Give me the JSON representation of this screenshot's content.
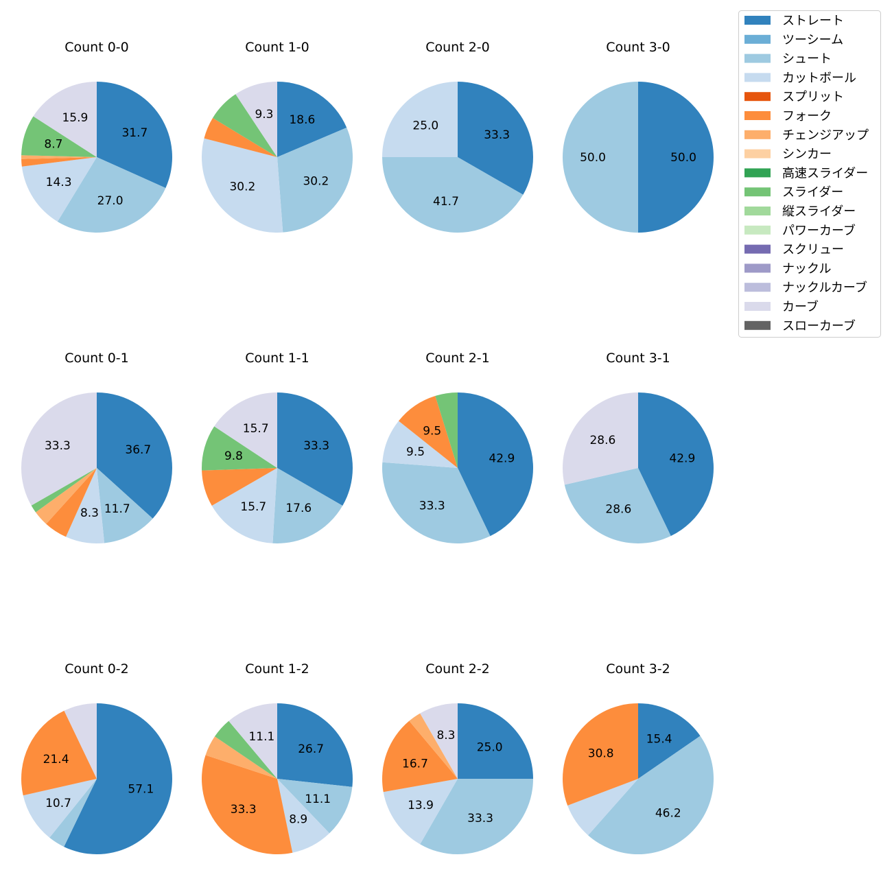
{
  "chart_data": {
    "type": "pie",
    "start_angle": 90,
    "direction": "clockwise",
    "label_format": "percent, 1 decimal, shown when >= 8%",
    "legend": {
      "placement": "top-right",
      "entries": [
        {
          "name": "ストレート",
          "color": "#3182bd"
        },
        {
          "name": "ツーシーム",
          "color": "#6baed6"
        },
        {
          "name": "シュート",
          "color": "#9ecae1"
        },
        {
          "name": "カットボール",
          "color": "#c6dbef"
        },
        {
          "name": "スプリット",
          "color": "#e6550d"
        },
        {
          "name": "フォーク",
          "color": "#fd8d3c"
        },
        {
          "name": "チェンジアップ",
          "color": "#fdae6b"
        },
        {
          "name": "シンカー",
          "color": "#fdd0a2"
        },
        {
          "name": "高速スライダー",
          "color": "#31a354"
        },
        {
          "name": "スライダー",
          "color": "#74c476"
        },
        {
          "name": "縦スライダー",
          "color": "#a1d99b"
        },
        {
          "name": "パワーカーブ",
          "color": "#c7e9c0"
        },
        {
          "name": "スクリュー",
          "color": "#756bb1"
        },
        {
          "name": "ナックル",
          "color": "#9e9ac8"
        },
        {
          "name": "ナックルカーブ",
          "color": "#bcbddc"
        },
        {
          "name": "カーブ",
          "color": "#dadaeb"
        },
        {
          "name": "スローカーブ",
          "color": "#636363"
        }
      ]
    },
    "charts": [
      {
        "title": "Count 0-0",
        "slices": [
          [
            "ストレート",
            31.7
          ],
          [
            "シュート",
            27.0
          ],
          [
            "カットボール",
            14.3
          ],
          [
            "フォーク",
            1.6
          ],
          [
            "チェンジアップ",
            0.8
          ],
          [
            "スライダー",
            8.7
          ],
          [
            "カーブ",
            15.9
          ]
        ]
      },
      {
        "title": "Count 1-0",
        "slices": [
          [
            "ストレート",
            18.6
          ],
          [
            "シュート",
            30.2
          ],
          [
            "カットボール",
            30.2
          ],
          [
            "フォーク",
            4.7
          ],
          [
            "スライダー",
            7.0
          ],
          [
            "カーブ",
            9.3
          ]
        ]
      },
      {
        "title": "Count 2-0",
        "slices": [
          [
            "ストレート",
            33.3
          ],
          [
            "シュート",
            41.7
          ],
          [
            "カットボール",
            25.0
          ]
        ]
      },
      {
        "title": "Count 3-0",
        "slices": [
          [
            "ストレート",
            50.0
          ],
          [
            "シュート",
            50.0
          ]
        ]
      },
      {
        "title": "Count 0-1",
        "slices": [
          [
            "ストレート",
            36.7
          ],
          [
            "シュート",
            11.7
          ],
          [
            "カットボール",
            8.3
          ],
          [
            "フォーク",
            5.0
          ],
          [
            "チェンジアップ",
            3.3
          ],
          [
            "スライダー",
            1.7
          ],
          [
            "カーブ",
            33.3
          ]
        ]
      },
      {
        "title": "Count 1-1",
        "slices": [
          [
            "ストレート",
            33.3
          ],
          [
            "シュート",
            17.6
          ],
          [
            "カットボール",
            15.7
          ],
          [
            "フォーク",
            7.8
          ],
          [
            "スライダー",
            9.8
          ],
          [
            "カーブ",
            15.7
          ]
        ]
      },
      {
        "title": "Count 2-1",
        "slices": [
          [
            "ストレート",
            42.9
          ],
          [
            "シュート",
            33.3
          ],
          [
            "カットボール",
            9.5
          ],
          [
            "フォーク",
            9.5
          ],
          [
            "スライダー",
            4.8
          ]
        ]
      },
      {
        "title": "Count 3-1",
        "slices": [
          [
            "ストレート",
            42.9
          ],
          [
            "シュート",
            28.6
          ],
          [
            "カーブ",
            28.6
          ]
        ]
      },
      {
        "title": "Count 0-2",
        "slices": [
          [
            "ストレート",
            57.1
          ],
          [
            "シュート",
            3.6
          ],
          [
            "カットボール",
            10.7
          ],
          [
            "フォーク",
            21.4
          ],
          [
            "カーブ",
            7.1
          ]
        ]
      },
      {
        "title": "Count 1-2",
        "slices": [
          [
            "ストレート",
            26.7
          ],
          [
            "シュート",
            11.1
          ],
          [
            "カットボール",
            8.9
          ],
          [
            "フォーク",
            33.3
          ],
          [
            "チェンジアップ",
            4.4
          ],
          [
            "スライダー",
            4.4
          ],
          [
            "カーブ",
            11.1
          ]
        ]
      },
      {
        "title": "Count 2-2",
        "slices": [
          [
            "ストレート",
            25.0
          ],
          [
            "シュート",
            33.3
          ],
          [
            "カットボール",
            13.9
          ],
          [
            "フォーク",
            16.7
          ],
          [
            "チェンジアップ",
            2.8
          ],
          [
            "カーブ",
            8.3
          ]
        ]
      },
      {
        "title": "Count 3-2",
        "slices": [
          [
            "ストレート",
            15.4
          ],
          [
            "シュート",
            46.2
          ],
          [
            "カットボール",
            7.7
          ],
          [
            "フォーク",
            30.8
          ]
        ]
      }
    ]
  }
}
